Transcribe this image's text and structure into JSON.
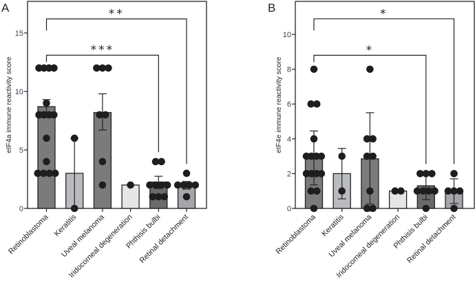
{
  "chart_data": [
    {
      "panel": "A",
      "type": "bar",
      "title": "",
      "xlabel": "",
      "ylabel": "eIF4a immune reactivity score",
      "ylim": [
        0,
        17.7
      ],
      "yticks": [
        0,
        5,
        10,
        15
      ],
      "grid": false,
      "categories": [
        "Retinoblastoma",
        "Keratitis",
        "Uveal melanoma",
        "Iridocorneal degeneration",
        "Phthisis bulbi",
        "Retinal detachment"
      ],
      "bar_colors": [
        "#7b7b7b",
        "#b9bbbe",
        "#7b7b7b",
        "#e6e6e6",
        "#6a6a6a",
        "#a4a6a9"
      ],
      "values": [
        8.7,
        3.0,
        8.2,
        2.0,
        2.25,
        2.0
      ],
      "error_low": [
        8.1,
        0,
        6.7,
        2.0,
        1.7,
        1.65
      ],
      "error_high": [
        9.3,
        6.0,
        9.8,
        2.0,
        2.75,
        2.3
      ],
      "points": [
        [
          12,
          12,
          12,
          12,
          12,
          12,
          12,
          12,
          9,
          8,
          8,
          8,
          8,
          8,
          8,
          8,
          6,
          4,
          3,
          3,
          3,
          3
        ],
        [
          6,
          0
        ],
        [
          12,
          12,
          12,
          8,
          8,
          4,
          2
        ],
        [
          2
        ],
        [
          4,
          4,
          2,
          2,
          2,
          2,
          1,
          1,
          1
        ],
        [
          3,
          2,
          2,
          2,
          2,
          1
        ]
      ],
      "significance": [
        {
          "from": "Retinoblastoma",
          "to": "Retinal detachment",
          "label": "**",
          "level": 16.2
        },
        {
          "from": "Retinoblastoma",
          "to": "Phthisis bulbi",
          "label": "***",
          "level": 13.1
        }
      ]
    },
    {
      "panel": "B",
      "type": "bar",
      "title": "",
      "xlabel": "",
      "ylabel": "eIF4e immune reactivity score",
      "ylim": [
        0,
        11.9
      ],
      "yticks": [
        0,
        2,
        4,
        6,
        8,
        10
      ],
      "grid": false,
      "categories": [
        "Retinoblastoma",
        "Keratitis",
        "Uveal melanoma",
        "Iridocorneal degeneration",
        "Phthisis bulbi",
        "Retinal detachment"
      ],
      "bar_colors": [
        "#7b7b7b",
        "#b9bbbe",
        "#7b7b7b",
        "#e6e6e6",
        "#6a6a6a",
        "#a4a6a9"
      ],
      "values": [
        3.1,
        2.0,
        2.85,
        1.0,
        1.3,
        1.0
      ],
      "error_low": [
        1.35,
        0.55,
        0.25,
        1.0,
        0.5,
        0.28
      ],
      "error_high": [
        4.45,
        3.45,
        5.5,
        1.0,
        2.0,
        1.7
      ],
      "points": [
        [
          8,
          6,
          6,
          4,
          3,
          3,
          3,
          3,
          3,
          3,
          3,
          2,
          2,
          2,
          2,
          2,
          2,
          1,
          1,
          0
        ],
        [
          3,
          1
        ],
        [
          8,
          4,
          4,
          3,
          3,
          1,
          0,
          0
        ],
        [
          1,
          1
        ],
        [
          2,
          2,
          2,
          1,
          1,
          1,
          1,
          0
        ],
        [
          2,
          1,
          1,
          1,
          0
        ]
      ],
      "significance": [
        {
          "from": "Retinoblastoma",
          "to": "Retinal detachment",
          "label": "*",
          "level": 10.9
        },
        {
          "from": "Retinoblastoma",
          "to": "Phthisis bulbi",
          "label": "*",
          "level": 8.8
        }
      ]
    }
  ]
}
